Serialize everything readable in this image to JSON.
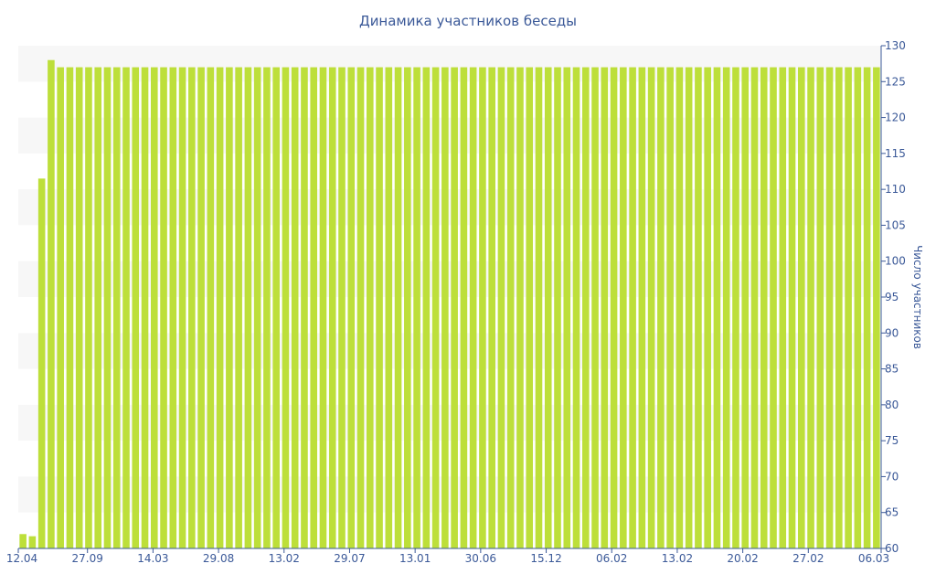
{
  "chart_data": {
    "type": "bar",
    "title": "Динамика участников беседы",
    "xlabel": "",
    "ylabel": "Число участников",
    "ylim": [
      60,
      130
    ],
    "y_axis_side": "right",
    "y_ticks": [
      60,
      65,
      70,
      75,
      80,
      85,
      90,
      95,
      100,
      105,
      110,
      115,
      120,
      125,
      130
    ],
    "x_tick_labels": [
      "12.04",
      "27.09",
      "14.03",
      "29.08",
      "13.02",
      "29.07",
      "13.01",
      "30.06",
      "15.12",
      "06.02",
      "13.02",
      "20.02",
      "27.02",
      "06.03"
    ],
    "bar_color": "#bddf3a",
    "grid": "alternating horizontal bands",
    "values": [
      62,
      61.7,
      111.5,
      128,
      127,
      127,
      127,
      127,
      127,
      127,
      127,
      127,
      127,
      127,
      127,
      127,
      127,
      127,
      127,
      127,
      127,
      127,
      127,
      127,
      127,
      127,
      127,
      127,
      127,
      127,
      127,
      127,
      127,
      127,
      127,
      127,
      127,
      127,
      127,
      127,
      127,
      127,
      127,
      127,
      127,
      127,
      127,
      127,
      127,
      127,
      127,
      127,
      127,
      127,
      127,
      127,
      127,
      127,
      127,
      127,
      127,
      127,
      127,
      127,
      127,
      127,
      127,
      127,
      127,
      127,
      127,
      127,
      127,
      127,
      127,
      127,
      127,
      127,
      127,
      127,
      127,
      127,
      127,
      127,
      127,
      127,
      127,
      127,
      127,
      127,
      127,
      127
    ]
  }
}
